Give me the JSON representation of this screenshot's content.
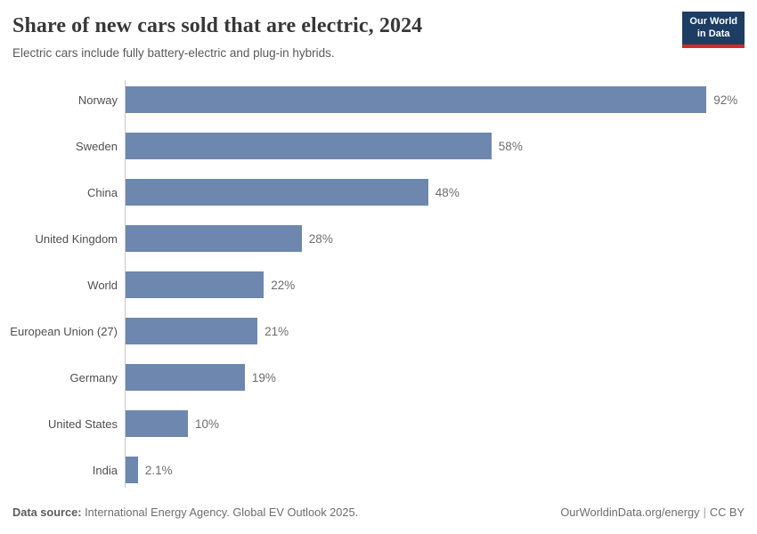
{
  "header": {
    "title": "Share of new cars sold that are electric, 2024",
    "subtitle": "Electric cars include fully battery-electric and plug-in hybrids.",
    "logo_line1": "Our World",
    "logo_line2": "in Data"
  },
  "chart_data": {
    "type": "bar",
    "orientation": "horizontal",
    "title": "Share of new cars sold that are electric, 2024",
    "xlabel": "",
    "ylabel": "",
    "xlim": [
      0,
      100
    ],
    "grid": false,
    "legend": false,
    "unit": "%",
    "categories": [
      "Norway",
      "Sweden",
      "China",
      "United Kingdom",
      "World",
      "European Union (27)",
      "Germany",
      "United States",
      "India"
    ],
    "values": [
      92,
      58,
      48,
      28,
      22,
      21,
      19,
      10,
      2.1
    ],
    "value_labels": [
      "92%",
      "58%",
      "48%",
      "28%",
      "22%",
      "21%",
      "19%",
      "10%",
      "2.1%"
    ],
    "bar_color": "#6e87ae",
    "axis_color": "#c9c9c9"
  },
  "footer": {
    "datasource_label": "Data source:",
    "datasource_text": " International Energy Agency. Global EV Outlook 2025.",
    "site_link": "OurWorldinData.org/energy",
    "separator": "|",
    "license": "CC BY"
  },
  "colors": {
    "logo_bg": "#1d3d63",
    "logo_stripe": "#d42a20",
    "title_text": "#383838",
    "subtitle_text": "#595959",
    "label_text": "#4f4f4f",
    "value_text": "#6d6d6d"
  }
}
